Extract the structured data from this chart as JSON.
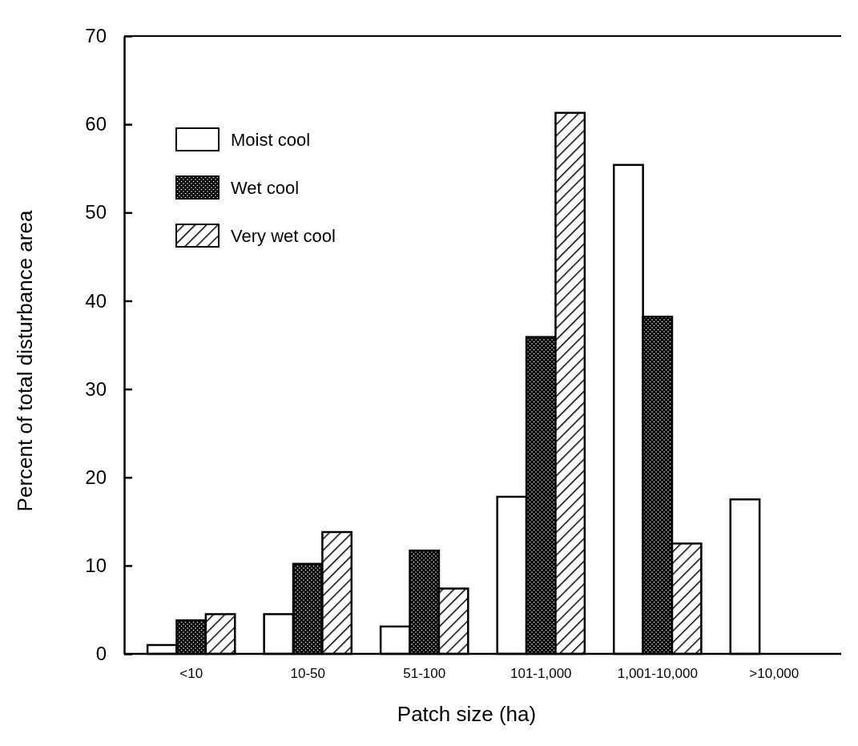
{
  "chart_data": {
    "type": "bar",
    "xlabel": "Patch size (ha)",
    "ylabel": "Percent of total disturbance area",
    "categories": [
      "<10",
      "10-50",
      "51-100",
      "101-1,000",
      "1,001-10,000",
      ">10,000"
    ],
    "series": [
      {
        "name": "Moist cool",
        "color": "#ffffff",
        "values": [
          1.0,
          4.5,
          3.1,
          17.8,
          55.4,
          17.5
        ]
      },
      {
        "name": "Wet cool",
        "color": "#000000",
        "values": [
          3.8,
          10.2,
          11.7,
          35.9,
          38.2,
          0
        ]
      },
      {
        "name": "Very wet cool",
        "color": "#000000",
        "values": [
          4.5,
          13.8,
          7.4,
          61.3,
          12.5,
          0
        ]
      }
    ],
    "ylim": [
      0,
      70
    ],
    "yticks": [
      0,
      10,
      20,
      30,
      40,
      50,
      60,
      70
    ],
    "grid": false,
    "legend": "top left"
  }
}
